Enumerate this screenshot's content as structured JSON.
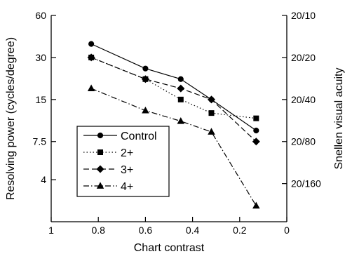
{
  "chart_data": {
    "type": "line",
    "xlabel": "Chart contrast",
    "ylabel": "Resolving power (cycles/degree)",
    "y2label": "Snellen visual acuity",
    "x_reversed": true,
    "xlim": [
      1,
      0
    ],
    "xticks": [
      1,
      0.8,
      0.6,
      0.4,
      0.2,
      0
    ],
    "xtick_labels": [
      "1",
      "0.8",
      "0.6",
      "0.4",
      "0.2",
      "0"
    ],
    "y_scale": "log",
    "ylim": [
      2,
      60
    ],
    "yticks": [
      60,
      30,
      15,
      7.5,
      4
    ],
    "ytick_labels": [
      "60",
      "30",
      "15",
      "7.5",
      "4"
    ],
    "y2ticks": [
      60,
      30,
      15,
      7.5,
      3.75
    ],
    "y2tick_labels": [
      "20/10",
      "20/20",
      "20/40",
      "20/80",
      "20/160"
    ],
    "legend_position": "lower-left",
    "series": [
      {
        "name": "Control",
        "marker": "circle",
        "dash": "solid",
        "x": [
          0.83,
          0.6,
          0.45,
          0.32,
          0.13
        ],
        "y": [
          37.5,
          25,
          21,
          15,
          9
        ]
      },
      {
        "name": "2+",
        "marker": "square",
        "dash": "dotted",
        "x": [
          0.83,
          0.6,
          0.45,
          0.32,
          0.13
        ],
        "y": [
          30,
          21,
          15,
          12,
          11
        ]
      },
      {
        "name": "3+",
        "marker": "diamond",
        "dash": "dashed",
        "x": [
          0.83,
          0.6,
          0.45,
          0.32,
          0.13
        ],
        "y": [
          30,
          21,
          18,
          15,
          7.5
        ]
      },
      {
        "name": "4+",
        "marker": "triangle",
        "dash": "dashdot",
        "x": [
          0.83,
          0.6,
          0.45,
          0.32,
          0.13
        ],
        "y": [
          18,
          12.5,
          10.5,
          8.8,
          2.6
        ]
      }
    ]
  }
}
